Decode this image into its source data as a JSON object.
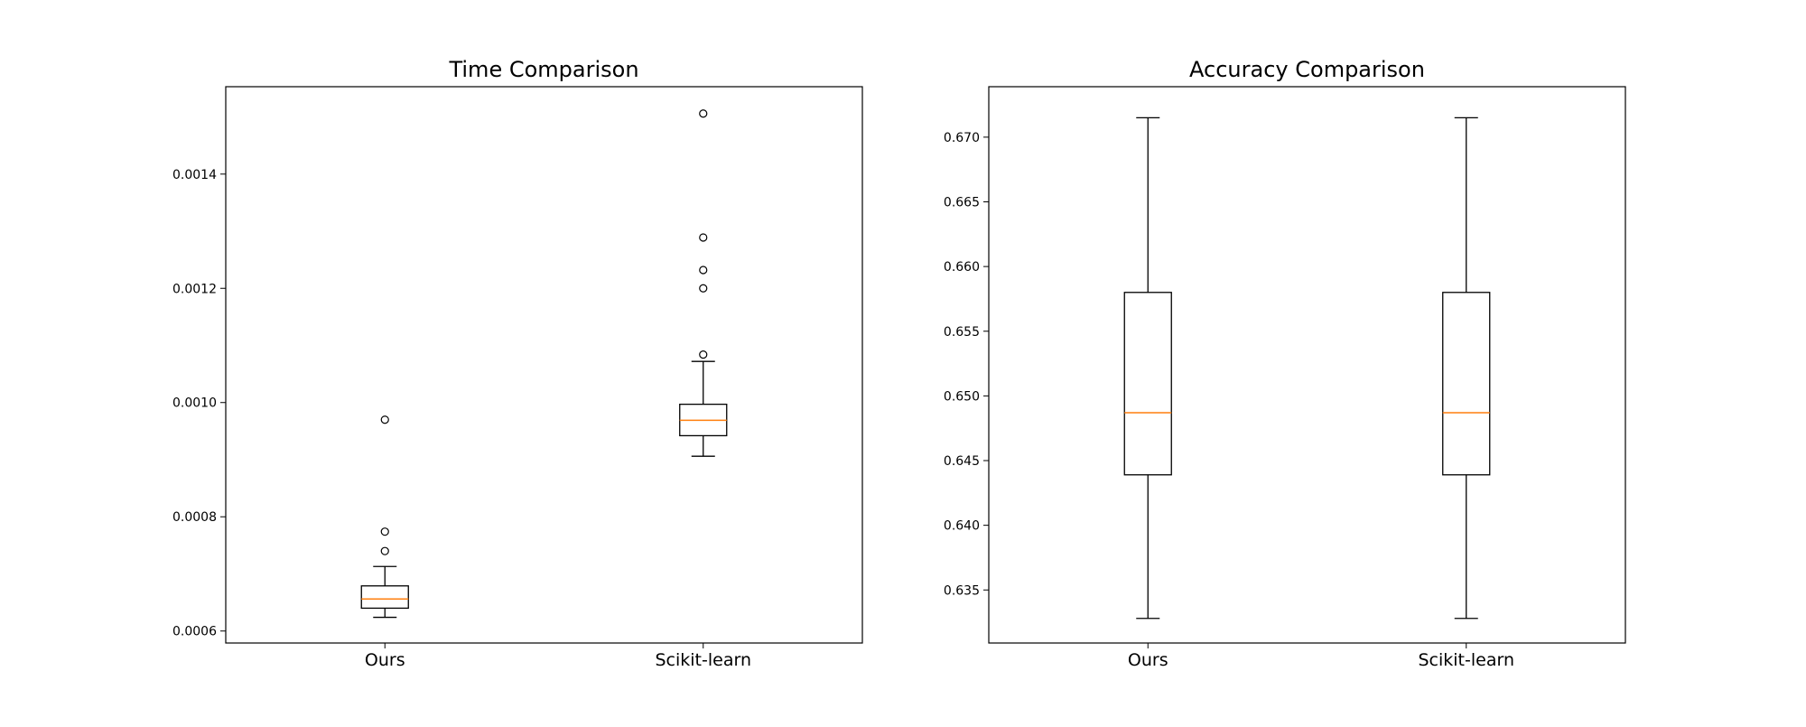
{
  "colors": {
    "box": "#000000",
    "median": "#ff7f0e",
    "background": "#ffffff"
  },
  "chart_data": [
    {
      "type": "box",
      "title": "Time Comparison",
      "xlabel": "",
      "ylabel": "",
      "categories": [
        "Ours",
        "Scikit-learn"
      ],
      "ylim": [
        0.000579,
        0.001553
      ],
      "yticks": [
        0.0006,
        0.0008,
        0.001,
        0.0012,
        0.0014
      ],
      "ytick_labels": [
        "0.0006",
        "0.0008",
        "0.0010",
        "0.0012",
        "0.0014"
      ],
      "grid": false,
      "boxes": [
        {
          "name": "Ours",
          "whisker_low": 0.000624,
          "q1": 0.00064,
          "median": 0.000656,
          "q3": 0.000679,
          "whisker_high": 0.000713,
          "outliers": [
            0.00074,
            0.000774,
            0.00097
          ]
        },
        {
          "name": "Scikit-learn",
          "whisker_low": 0.000906,
          "q1": 0.000942,
          "median": 0.000969,
          "q3": 0.000997,
          "whisker_high": 0.001072,
          "outliers": [
            0.001084,
            0.0012,
            0.001232,
            0.001289,
            0.001506
          ]
        }
      ]
    },
    {
      "type": "box",
      "title": "Accuracy Comparison",
      "xlabel": "",
      "ylabel": "",
      "categories": [
        "Ours",
        "Scikit-learn"
      ],
      "ylim": [
        0.6309,
        0.6739
      ],
      "yticks": [
        0.635,
        0.64,
        0.645,
        0.65,
        0.655,
        0.66,
        0.665,
        0.67
      ],
      "ytick_labels": [
        "0.635",
        "0.640",
        "0.645",
        "0.650",
        "0.655",
        "0.660",
        "0.665",
        "0.670"
      ],
      "grid": false,
      "boxes": [
        {
          "name": "Ours",
          "whisker_low": 0.6328,
          "q1": 0.6439,
          "median": 0.6487,
          "q3": 0.658,
          "whisker_high": 0.6715,
          "outliers": []
        },
        {
          "name": "Scikit-learn",
          "whisker_low": 0.6328,
          "q1": 0.6439,
          "median": 0.6487,
          "q3": 0.658,
          "whisker_high": 0.6715,
          "outliers": []
        }
      ]
    }
  ]
}
